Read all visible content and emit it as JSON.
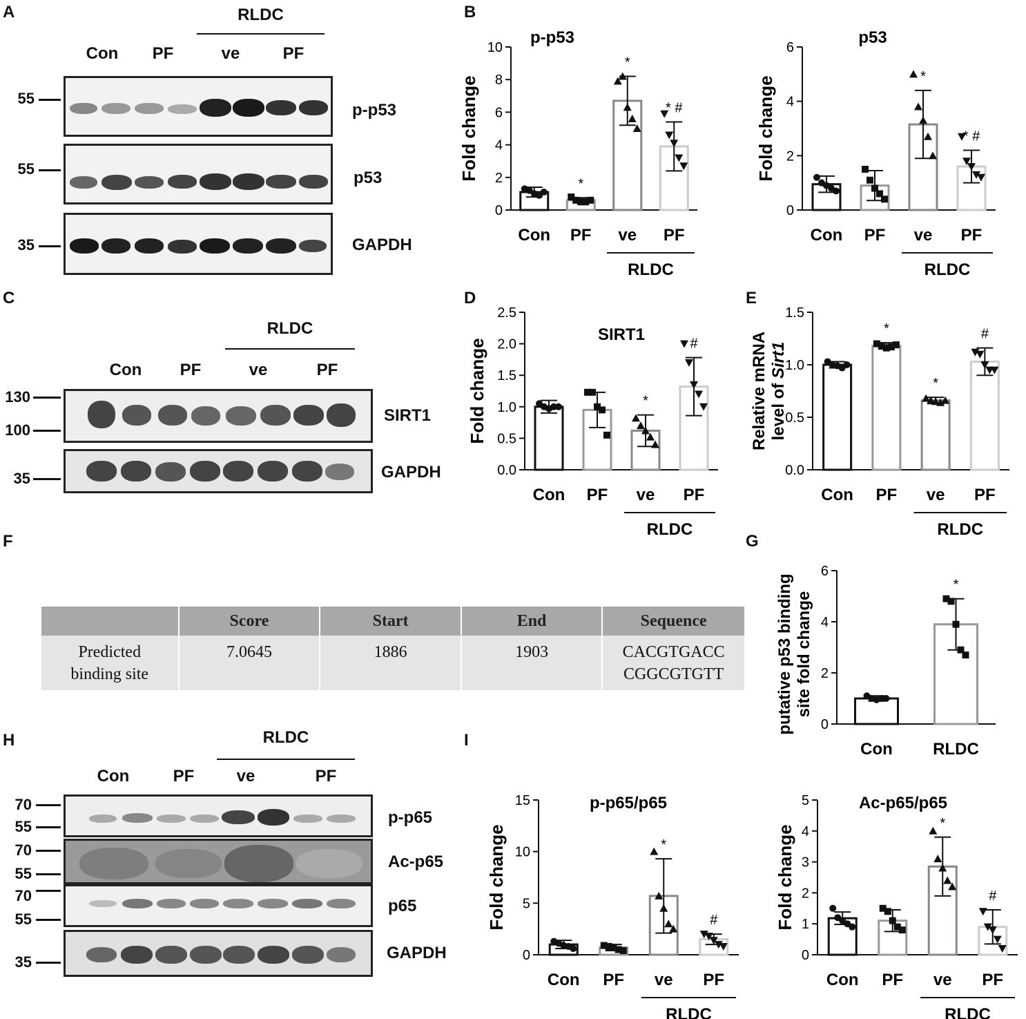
{
  "panels": {
    "A": "A",
    "B": "B",
    "C": "C",
    "D": "D",
    "E": "E",
    "F": "F",
    "G": "G",
    "H": "H",
    "I": "I"
  },
  "common": {
    "rldc": "RLDC",
    "con": "Con",
    "pf": "PF",
    "ve": "ve",
    "fold_change": "Fold change"
  },
  "blotA": {
    "lanes": [
      "Con",
      "PF",
      "ve",
      "PF"
    ],
    "bands": [
      "p-p53",
      "p53",
      "GAPDH"
    ],
    "mw": [
      "55",
      "55",
      "35"
    ]
  },
  "blotC": {
    "lanes": [
      "Con",
      "PF",
      "ve",
      "PF"
    ],
    "bands": [
      "SIRT1",
      "GAPDH"
    ],
    "mw": [
      "130",
      "100",
      "35"
    ]
  },
  "blotH": {
    "lanes": [
      "Con",
      "PF",
      "ve",
      "PF"
    ],
    "bands": [
      "p-p65",
      "Ac-p65",
      "p65",
      "GAPDH"
    ],
    "mw": [
      "70",
      "55",
      "70",
      "55",
      "70",
      "55",
      "35"
    ]
  },
  "table": {
    "headers": [
      "",
      "Score",
      "Start",
      "End",
      "Sequence"
    ],
    "row": [
      "Predicted binding site",
      "7.0645",
      "1886",
      "1903",
      "CACGTGACC CGGCGTGTT"
    ],
    "row_lines": [
      [
        "Predicted",
        "binding site"
      ],
      [
        "7.0645"
      ],
      [
        "1886"
      ],
      [
        "1903"
      ],
      [
        "CACGTGACC",
        "CGGCGTGTT"
      ]
    ]
  },
  "chart_data": [
    {
      "id": "B1",
      "type": "bar",
      "title": "p-p53",
      "ylabel": "Fold change",
      "ylim": [
        0,
        10
      ],
      "yticks": [
        "0",
        "2",
        "4",
        "6",
        "8",
        "10"
      ],
      "categories": [
        "Con",
        "PF",
        "ve",
        "PF"
      ],
      "group_label": "RLDC",
      "values": [
        1.1,
        0.6,
        6.7,
        3.9
      ],
      "errors": [
        0.3,
        0.15,
        1.5,
        1.5
      ],
      "annotations": [
        "",
        "*",
        "*",
        "* #"
      ],
      "points": [
        [
          1.3,
          1.2,
          1.0,
          0.9,
          1.1
        ],
        [
          0.8,
          0.6,
          0.5,
          0.5,
          0.6
        ],
        [
          7.9,
          8.2,
          6.3,
          5.6,
          5.0
        ],
        [
          5.9,
          4.6,
          4.1,
          3.2,
          2.7
        ]
      ]
    },
    {
      "id": "B2",
      "type": "bar",
      "title": "p53",
      "ylabel": "Fold change",
      "ylim": [
        0,
        6
      ],
      "yticks": [
        "0",
        "2",
        "4",
        "6"
      ],
      "categories": [
        "Con",
        "PF",
        "ve",
        "PF"
      ],
      "group_label": "RLDC",
      "values": [
        0.95,
        0.9,
        3.15,
        1.6
      ],
      "errors": [
        0.3,
        0.55,
        1.25,
        0.6
      ],
      "annotations": [
        "",
        "",
        "*",
        "* #"
      ],
      "points": [
        [
          1.2,
          1.0,
          0.9,
          0.8,
          0.7
        ],
        [
          1.5,
          1.1,
          0.8,
          0.6,
          0.4
        ],
        [
          5.0,
          3.8,
          3.3,
          2.7,
          2.0
        ],
        [
          2.7,
          1.8,
          1.6,
          1.3,
          1.2
        ]
      ]
    },
    {
      "id": "D",
      "type": "bar",
      "title": "SIRT1",
      "ylabel": "Fold change",
      "ylim": [
        0,
        2.5
      ],
      "yticks": [
        "0.0",
        "0.5",
        "1.0",
        "1.5",
        "2.0",
        "2.5"
      ],
      "categories": [
        "Con",
        "PF",
        "ve",
        "PF"
      ],
      "group_label": "RLDC",
      "values": [
        1.0,
        0.95,
        0.62,
        1.32
      ],
      "errors": [
        0.1,
        0.28,
        0.25,
        0.46
      ],
      "annotations": [
        "",
        "",
        "*",
        "#"
      ],
      "points": [
        [
          1.05,
          1.0,
          0.97,
          1.0,
          1.0
        ],
        [
          1.23,
          1.23,
          1.0,
          0.95,
          0.55
        ],
        [
          0.82,
          0.7,
          0.62,
          0.52,
          0.4
        ],
        [
          2.0,
          1.7,
          1.35,
          1.2,
          1.0
        ]
      ]
    },
    {
      "id": "E",
      "type": "bar",
      "title": "",
      "ylabel": "Relative mRNA level of Sirt1",
      "ylim": [
        0,
        1.5
      ],
      "yticks": [
        "0.0",
        "0.5",
        "1.0",
        "1.5"
      ],
      "categories": [
        "Con",
        "PF",
        "ve",
        "PF"
      ],
      "group_label": "RLDC",
      "values": [
        1.0,
        1.18,
        0.66,
        1.03
      ],
      "errors": [
        0.03,
        0.03,
        0.03,
        0.13
      ],
      "annotations": [
        "",
        "*",
        "*",
        "#"
      ],
      "points": [
        [
          1.03,
          1.0,
          0.99,
          0.97,
          1.0
        ],
        [
          1.2,
          1.18,
          1.16,
          1.17,
          1.19
        ],
        [
          0.68,
          0.66,
          0.65,
          0.64,
          0.66
        ],
        [
          1.12,
          1.1,
          1.0,
          0.95,
          0.95
        ]
      ]
    },
    {
      "id": "G",
      "type": "bar",
      "title": "",
      "ylabel": "putative p53 binding site fold change",
      "ylim": [
        0,
        6
      ],
      "yticks": [
        "0",
        "2",
        "4",
        "6"
      ],
      "categories": [
        "Con",
        "RLDC"
      ],
      "group_label": "",
      "values": [
        1.0,
        3.9
      ],
      "errors": [
        0.1,
        1.0
      ],
      "annotations": [
        "",
        "*"
      ],
      "points": [
        [
          1.1,
          1.0,
          0.95,
          1.0,
          1.0
        ],
        [
          4.9,
          4.8,
          3.9,
          2.9,
          2.7
        ]
      ]
    },
    {
      "id": "I1",
      "type": "bar",
      "title": "p-p65/p65",
      "ylabel": "Fold change",
      "ylim": [
        0,
        15
      ],
      "yticks": [
        "0",
        "5",
        "10",
        "15"
      ],
      "categories": [
        "Con",
        "PF",
        "ve",
        "PF"
      ],
      "group_label": "RLDC",
      "values": [
        1.0,
        0.7,
        5.7,
        1.5
      ],
      "errors": [
        0.4,
        0.3,
        3.6,
        0.5
      ],
      "annotations": [
        "",
        "",
        "*",
        "#"
      ],
      "points": [
        [
          1.3,
          1.1,
          0.9,
          0.8,
          0.6
        ],
        [
          0.9,
          0.8,
          0.7,
          0.5,
          0.4
        ],
        [
          10.0,
          5.7,
          4.5,
          3.0,
          2.5
        ],
        [
          2.0,
          1.8,
          1.4,
          1.0,
          0.8
        ]
      ]
    },
    {
      "id": "I2",
      "type": "bar",
      "title": "Ac-p65/p65",
      "ylabel": "Fold change",
      "ylim": [
        0,
        5
      ],
      "yticks": [
        "0",
        "1",
        "2",
        "3",
        "4",
        "5"
      ],
      "categories": [
        "Con",
        "PF",
        "ve",
        "PF"
      ],
      "group_label": "RLDC",
      "values": [
        1.18,
        1.1,
        2.85,
        0.9
      ],
      "errors": [
        0.2,
        0.35,
        0.95,
        0.55
      ],
      "annotations": [
        "",
        "",
        "*",
        "#"
      ],
      "points": [
        [
          1.5,
          1.2,
          1.1,
          1.0,
          0.9
        ],
        [
          1.5,
          1.4,
          1.1,
          0.9,
          0.8
        ],
        [
          4.0,
          3.1,
          2.8,
          2.4,
          2.2
        ],
        [
          1.4,
          0.9,
          0.8,
          0.5,
          0.2
        ]
      ]
    }
  ]
}
